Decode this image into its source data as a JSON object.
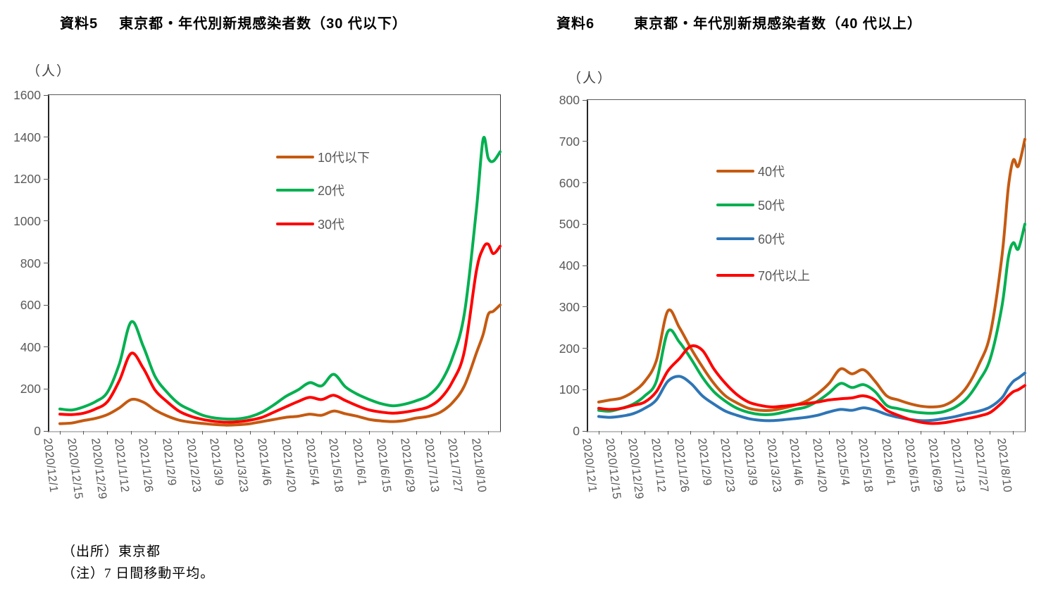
{
  "page": {
    "footer": {
      "source": "（出所）東京都",
      "note": "（注）7 日間移動平均。"
    }
  },
  "colors": {
    "axis_text": "#595959",
    "axis_line": "#262626",
    "baseline": "#BFBFBF",
    "series_orange_brown": "#C55A11",
    "series_green": "#00B050",
    "series_red": "#FF0000",
    "series_blue": "#2E75B6"
  },
  "chart_data": [
    {
      "type": "line",
      "doc_label": "資料5",
      "title": "東京都・年代別新規感染者数（30 代以下）",
      "unit_label": "（人）",
      "ylim": [
        0,
        1600
      ],
      "yticks": [
        0,
        200,
        400,
        600,
        800,
        1000,
        1200,
        1400,
        1600
      ],
      "grid": false,
      "legend_position": "inside-upper-middle",
      "x_tick_interval_days": 14,
      "x_tick_labels": [
        "2020/12/1",
        "2020/12/15",
        "2020/12/29",
        "2021/1/12",
        "2021/1/26",
        "2021/2/9",
        "2021/2/23",
        "2021/3/9",
        "2021/3/23",
        "2021/4/6",
        "2021/4/20",
        "2021/5/4",
        "2021/5/18",
        "2021/6/1",
        "2021/6/15",
        "2021/6/29",
        "2021/7/13",
        "2021/7/27",
        "2021/8/10"
      ],
      "x_days": [
        0,
        7,
        14,
        21,
        28,
        35,
        42,
        49,
        56,
        63,
        70,
        77,
        84,
        91,
        98,
        105,
        112,
        119,
        126,
        133,
        140,
        147,
        154,
        161,
        168,
        175,
        182,
        189,
        196,
        203,
        210,
        217,
        224,
        231,
        238,
        245,
        249,
        252,
        255,
        259
      ],
      "series": [
        {
          "name": "10代以下",
          "color": "#C55A11",
          "values": [
            35,
            38,
            50,
            60,
            78,
            110,
            150,
            138,
            100,
            72,
            52,
            42,
            36,
            31,
            28,
            30,
            35,
            45,
            55,
            65,
            70,
            80,
            75,
            95,
            82,
            70,
            55,
            48,
            45,
            50,
            62,
            70,
            90,
            135,
            215,
            370,
            460,
            555,
            570,
            600
          ]
        },
        {
          "name": "20代",
          "color": "#00B050",
          "values": [
            105,
            100,
            115,
            140,
            185,
            320,
            520,
            405,
            260,
            185,
            130,
            100,
            75,
            62,
            57,
            58,
            68,
            90,
            125,
            165,
            195,
            230,
            215,
            270,
            210,
            175,
            150,
            130,
            120,
            128,
            145,
            170,
            230,
            350,
            560,
            1050,
            1390,
            1300,
            1285,
            1330
          ]
        },
        {
          "name": "30代",
          "color": "#FF0000",
          "values": [
            80,
            78,
            85,
            105,
            140,
            240,
            370,
            300,
            195,
            140,
            95,
            70,
            55,
            46,
            42,
            44,
            52,
            65,
            90,
            115,
            140,
            160,
            150,
            170,
            145,
            120,
            100,
            90,
            85,
            90,
            100,
            115,
            155,
            235,
            380,
            760,
            870,
            890,
            845,
            880
          ]
        }
      ]
    },
    {
      "type": "line",
      "doc_label": "資料6",
      "title": "東京都・年代別新規感染者数（40 代以上）",
      "unit_label": "（人）",
      "ylim": [
        0,
        800
      ],
      "yticks": [
        0,
        100,
        200,
        300,
        400,
        500,
        600,
        700,
        800
      ],
      "grid": false,
      "legend_position": "inside-upper-middle",
      "x_tick_interval_days": 14,
      "x_tick_labels": [
        "2020/12/1",
        "2020/12/15",
        "2020/12/29",
        "2021/1/12",
        "2021/1/26",
        "2021/2/9",
        "2021/2/23",
        "2021/3/9",
        "2021/3/23",
        "2021/4/6",
        "2021/4/20",
        "2021/5/4",
        "2021/5/18",
        "2021/6/1",
        "2021/6/15",
        "2021/6/29",
        "2021/7/13",
        "2021/7/27",
        "2021/8/10"
      ],
      "x_days": [
        0,
        7,
        14,
        21,
        28,
        35,
        42,
        49,
        56,
        63,
        70,
        77,
        84,
        91,
        98,
        105,
        112,
        119,
        126,
        133,
        140,
        147,
        154,
        161,
        168,
        175,
        182,
        189,
        196,
        203,
        210,
        217,
        224,
        231,
        238,
        245,
        249,
        252,
        255,
        259
      ],
      "series": [
        {
          "name": "40代",
          "color": "#C55A11",
          "values": [
            70,
            75,
            80,
            95,
            120,
            170,
            290,
            250,
            200,
            155,
            115,
            85,
            68,
            55,
            50,
            50,
            55,
            62,
            72,
            90,
            115,
            150,
            138,
            148,
            120,
            85,
            75,
            66,
            60,
            58,
            62,
            78,
            108,
            160,
            235,
            420,
            590,
            655,
            640,
            705
          ]
        },
        {
          "name": "50代",
          "color": "#00B050",
          "values": [
            50,
            48,
            55,
            65,
            85,
            120,
            240,
            215,
            175,
            130,
            95,
            72,
            55,
            45,
            40,
            40,
            45,
            52,
            58,
            72,
            92,
            115,
            105,
            112,
            95,
            62,
            54,
            48,
            44,
            43,
            47,
            58,
            80,
            120,
            175,
            300,
            420,
            455,
            440,
            500
          ]
        },
        {
          "name": "60代",
          "color": "#2E75B6",
          "values": [
            35,
            33,
            36,
            42,
            55,
            75,
            120,
            132,
            115,
            85,
            65,
            48,
            38,
            30,
            26,
            25,
            27,
            30,
            33,
            38,
            46,
            52,
            50,
            56,
            50,
            40,
            33,
            28,
            25,
            26,
            30,
            35,
            42,
            48,
            58,
            80,
            105,
            120,
            128,
            140
          ]
        },
        {
          "name": "70代以上",
          "color": "#FF0000",
          "values": [
            55,
            52,
            55,
            62,
            70,
            95,
            145,
            175,
            205,
            195,
            150,
            115,
            88,
            70,
            62,
            58,
            60,
            63,
            66,
            70,
            75,
            78,
            80,
            85,
            75,
            50,
            38,
            28,
            21,
            18,
            20,
            25,
            30,
            36,
            45,
            68,
            85,
            95,
            100,
            110
          ]
        }
      ]
    }
  ]
}
